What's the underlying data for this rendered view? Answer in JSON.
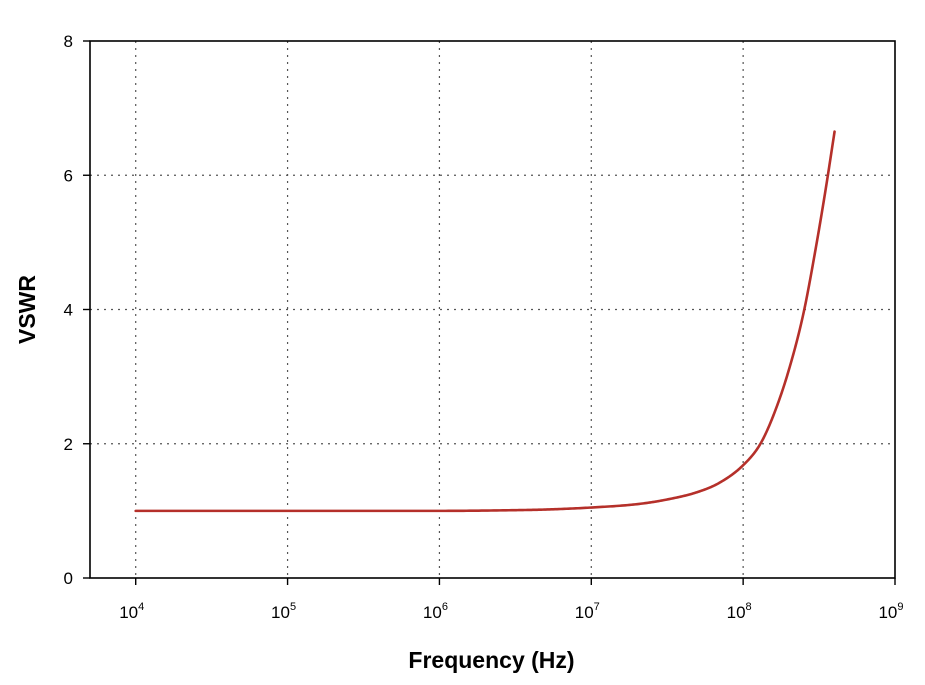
{
  "chart_data": {
    "type": "line",
    "xlabel": "Frequency (Hz)",
    "ylabel": "VSWR",
    "xscale": "log",
    "xlim": [
      5000,
      1000000000
    ],
    "ylim": [
      0,
      8
    ],
    "grid": true,
    "xticks": [
      {
        "value": 10000,
        "base": "10",
        "exp": "4"
      },
      {
        "value": 100000,
        "base": "10",
        "exp": "5"
      },
      {
        "value": 1000000,
        "base": "10",
        "exp": "6"
      },
      {
        "value": 10000000,
        "base": "10",
        "exp": "7"
      },
      {
        "value": 100000000,
        "base": "10",
        "exp": "8"
      },
      {
        "value": 1000000000,
        "base": "10",
        "exp": "9"
      }
    ],
    "yticks": [
      {
        "value": 0,
        "label": "0"
      },
      {
        "value": 2,
        "label": "2"
      },
      {
        "value": 4,
        "label": "4"
      },
      {
        "value": 6,
        "label": "6"
      },
      {
        "value": 8,
        "label": "8"
      }
    ],
    "series": [
      {
        "color": "#b5302a",
        "x": [
          10000,
          100000,
          1000000,
          3000000,
          5000000,
          10000000,
          20000000,
          30000000,
          50000000,
          70000000,
          100000000,
          130000000,
          160000000,
          200000000,
          250000000,
          300000000,
          350000000,
          400000000
        ],
        "y": [
          1.0,
          1.0,
          1.0,
          1.01,
          1.02,
          1.05,
          1.1,
          1.16,
          1.28,
          1.42,
          1.68,
          2.0,
          2.45,
          3.1,
          3.95,
          4.9,
          5.8,
          6.65
        ]
      }
    ]
  }
}
